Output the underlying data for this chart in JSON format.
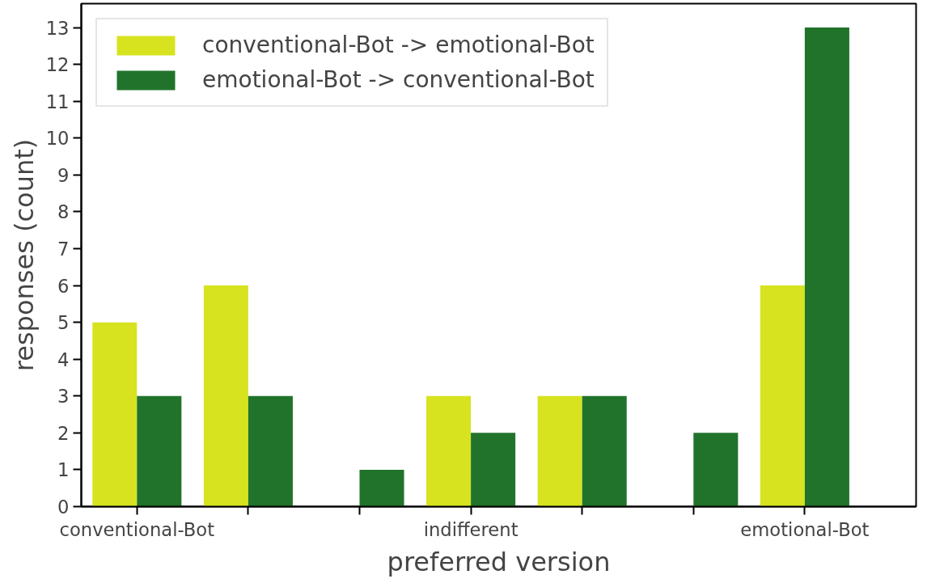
{
  "chart_data": {
    "type": "bar",
    "xlabel": "preferred version",
    "ylabel": "responses (count)",
    "categories": [
      "conventional-Bot",
      null,
      null,
      "indifferent",
      null,
      null,
      "emotional-Bot"
    ],
    "series": [
      {
        "name": "conventional-Bot -> emotional-Bot",
        "color": "#d7e31f",
        "values": [
          5,
          6,
          0,
          3,
          3,
          0,
          6
        ]
      },
      {
        "name": "emotional-Bot -> conventional-Bot",
        "color": "#21732b",
        "values": [
          3,
          3,
          1,
          2,
          3,
          2,
          13
        ]
      }
    ],
    "ylim": [
      0,
      13.65
    ],
    "yticks": [
      0,
      1,
      2,
      3,
      4,
      5,
      6,
      7,
      8,
      9,
      10,
      11,
      12,
      13
    ],
    "grid": false,
    "legend": "top left"
  }
}
